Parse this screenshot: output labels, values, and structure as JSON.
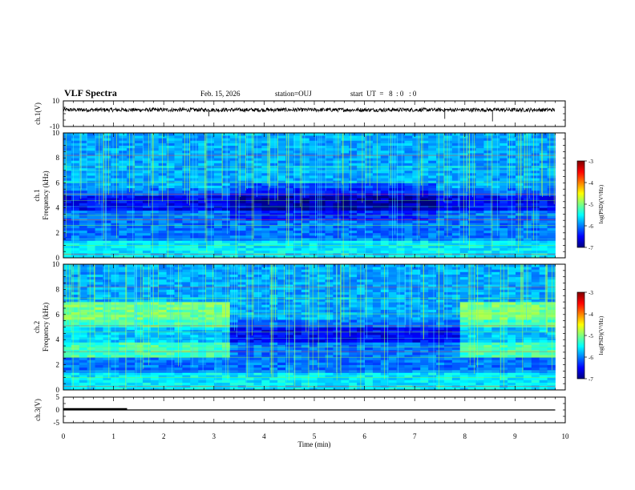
{
  "header": {
    "title": "VLF Spectra",
    "date": "Feb. 15, 2026",
    "station": "station=OUJ",
    "start_ut": "start  UT  =   8  : 0   : 0"
  },
  "chart_data": [
    {
      "panel": "ch1-waveform",
      "type": "line",
      "ylabel": "ch.1(V)",
      "ylim": [
        -10,
        10
      ],
      "yticks": [
        "10",
        "-10"
      ],
      "baseline_value": 3,
      "noise_amplitude": 1.5,
      "x_range_min": [
        0,
        9.8
      ]
    },
    {
      "panel": "ch1-spectrogram",
      "type": "heatmap",
      "ylabel": "ch.1\nFrequency (kHz)",
      "ylabel_line1": "ch.1",
      "ylabel_line2": "Frequency (kHz)",
      "ylim": [
        0,
        10
      ],
      "yticks": [
        "0",
        "2",
        "4",
        "6",
        "8",
        "10"
      ],
      "x_range_min": [
        0,
        9.8
      ],
      "colorbar": {
        "label": "log(PSD)(V²/Hz)",
        "range": [
          -7,
          -3
        ],
        "ticks": [
          "-3",
          "-4",
          "-5",
          "-6",
          "-7"
        ]
      }
    },
    {
      "panel": "ch2-spectrogram",
      "type": "heatmap",
      "ylabel": "ch.2\nFrequency (kHz)",
      "ylabel_line1": "ch.2",
      "ylabel_line2": "Frequency (kHz)",
      "ylim": [
        0,
        10
      ],
      "yticks": [
        "0",
        "2",
        "4",
        "6",
        "8",
        "10"
      ],
      "x_range_min": [
        0,
        9.8
      ],
      "enhanced_intervals_min": [
        [
          0,
          3.25
        ],
        [
          7.95,
          9.8
        ]
      ],
      "colorbar": {
        "label": "log(PSD)(V²/Hz)",
        "range": [
          -7,
          -3
        ],
        "ticks": [
          "-3",
          "-4",
          "-5",
          "-6",
          "-7"
        ]
      }
    },
    {
      "panel": "ch3-waveform",
      "type": "line",
      "ylabel": "ch.3(V)",
      "ylim": [
        -5,
        5
      ],
      "yticks": [
        "5",
        "0",
        "-5"
      ],
      "level_value": 0,
      "thick_segment_min": [
        0,
        1.27
      ],
      "x_range_min": [
        0,
        9.8
      ],
      "xlabel": "Time  (min)",
      "xlim": [
        0,
        10
      ],
      "xticks": [
        "0",
        "1",
        "2",
        "3",
        "4",
        "5",
        "6",
        "7",
        "8",
        "9",
        "10"
      ]
    }
  ],
  "colors": {
    "ink": "#000000",
    "colormap": [
      "#00007f",
      "#0000ff",
      "#007fff",
      "#00ffff",
      "#7fff7f",
      "#ffff00",
      "#ff7f00",
      "#ff0000",
      "#7f0000"
    ]
  }
}
